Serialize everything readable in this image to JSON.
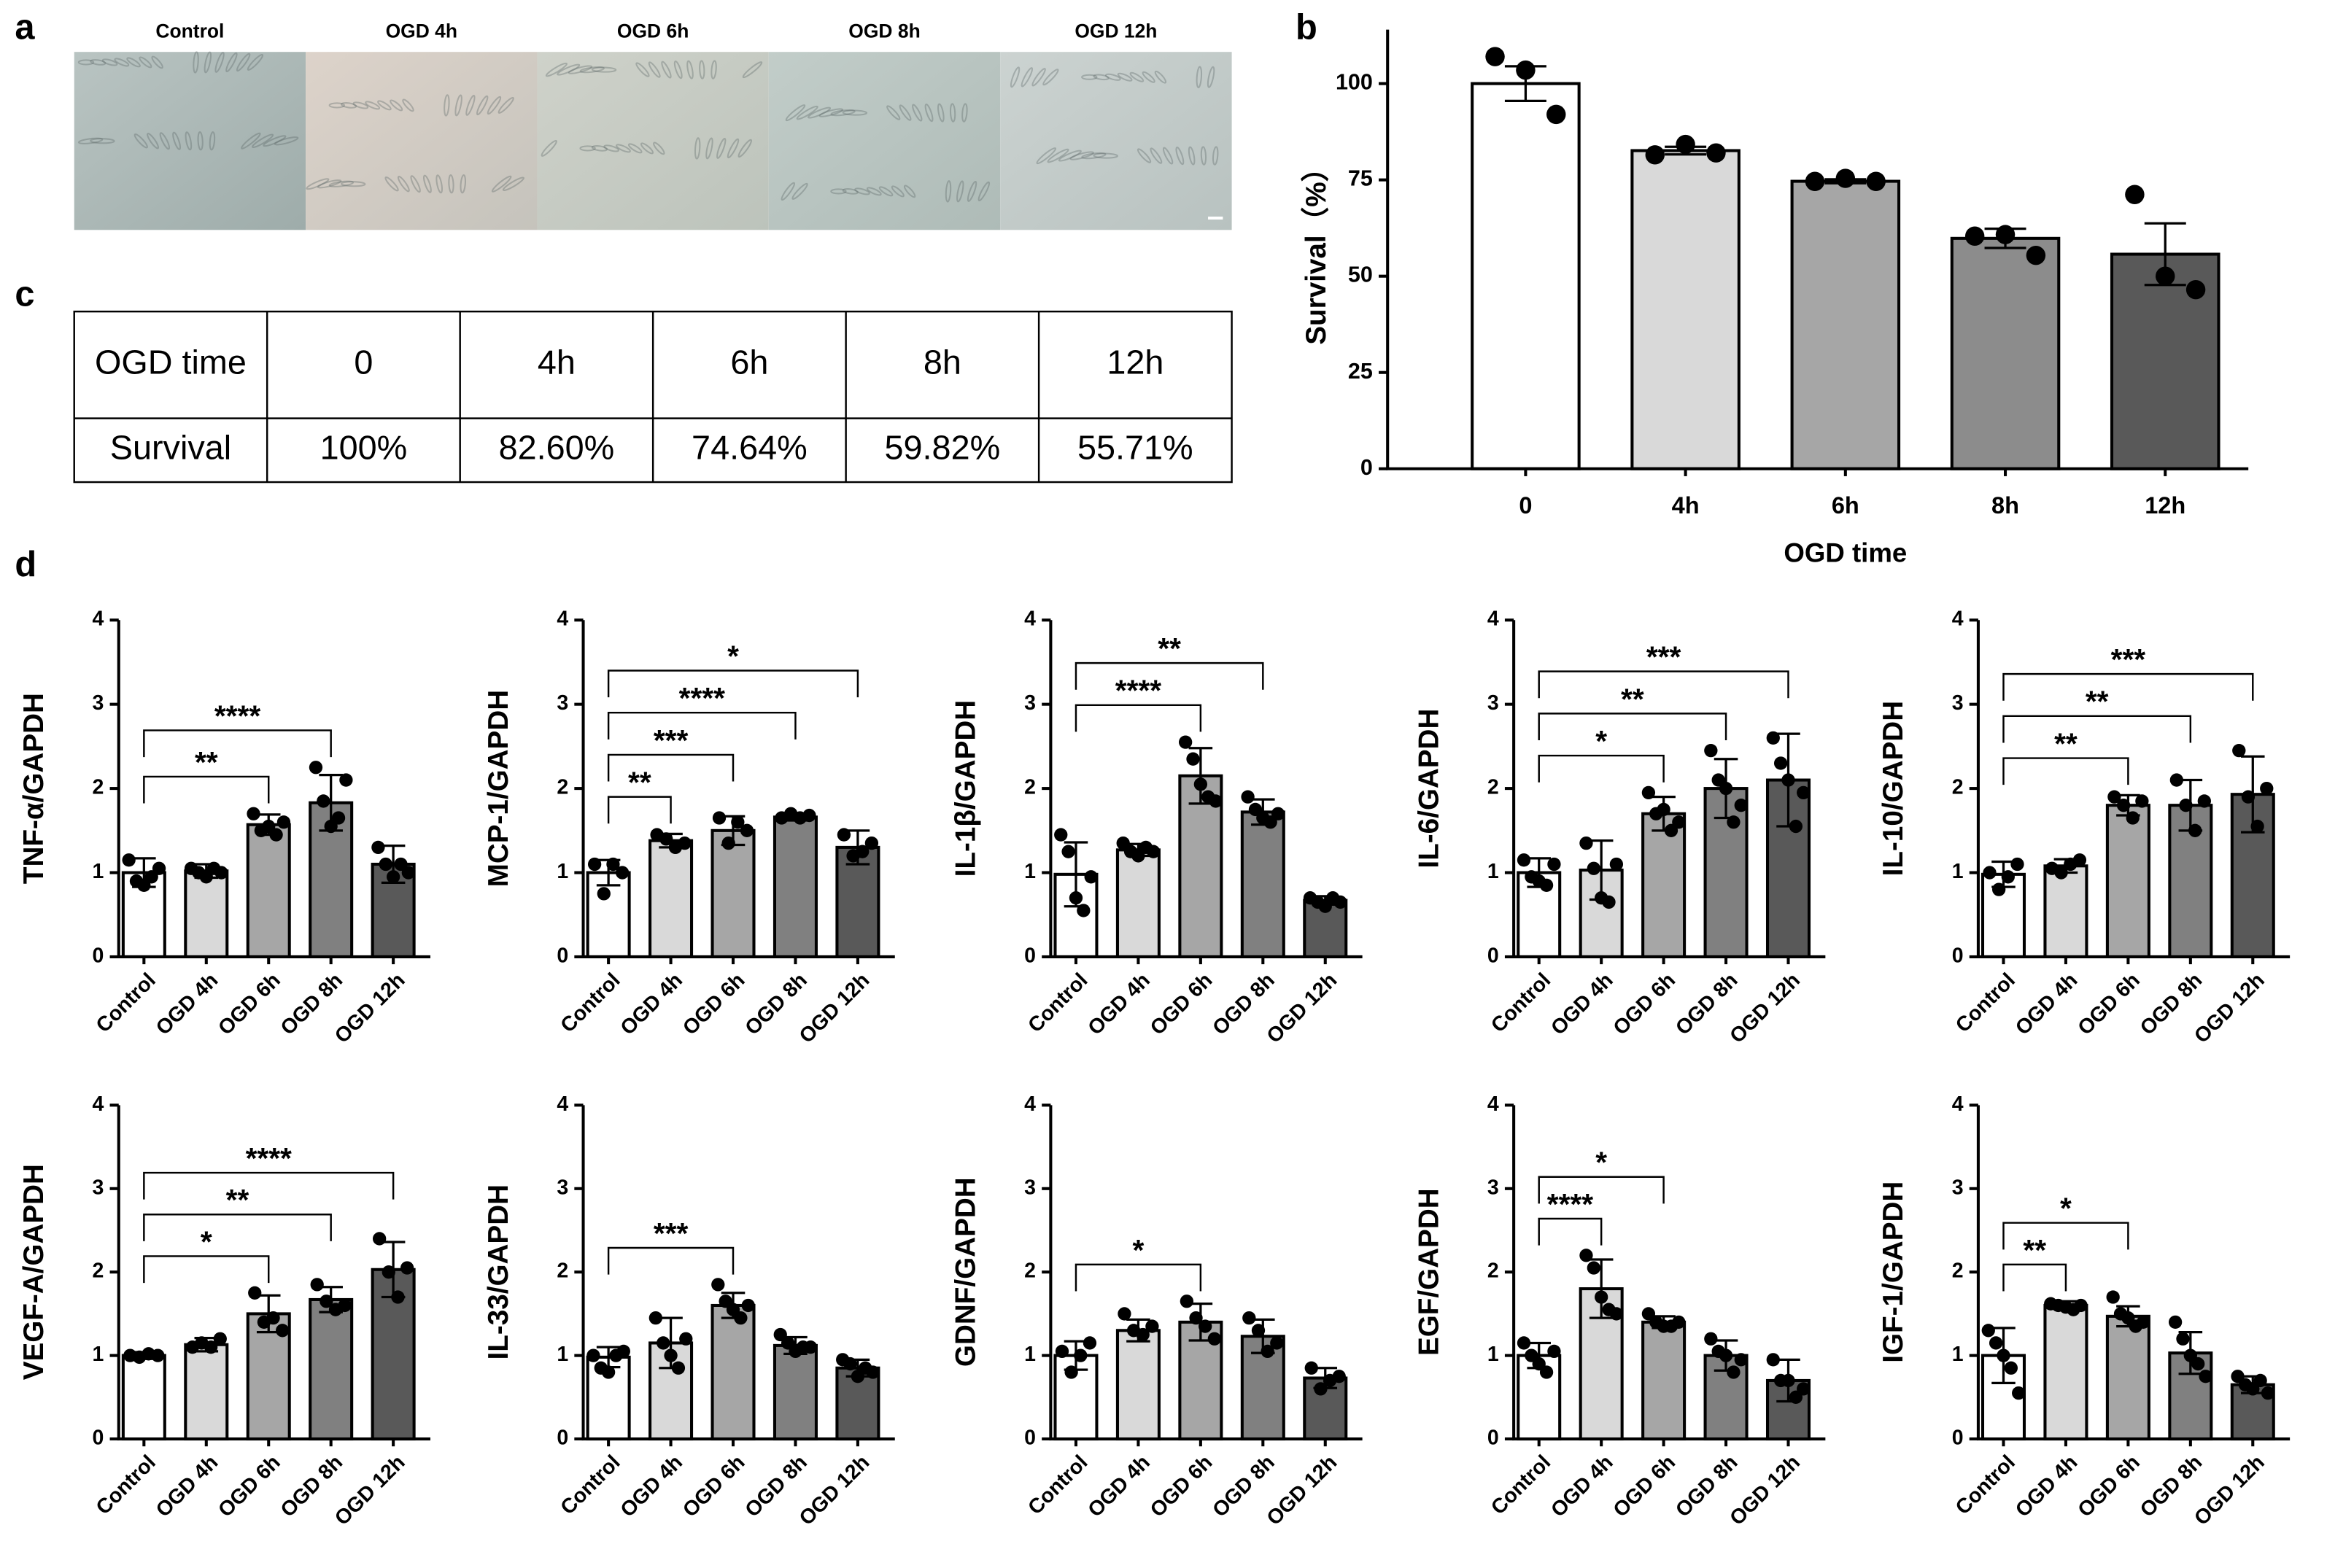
{
  "panel_labels": [
    "a",
    "b",
    "c",
    "d"
  ],
  "images": {
    "labels": [
      "Control",
      "OGD 4h",
      "OGD 6h",
      "OGD 8h",
      "OGD 12h"
    ]
  },
  "table": {
    "header": [
      "OGD time",
      "0",
      "4h",
      "6h",
      "8h",
      "12h"
    ],
    "rows": [
      [
        "Survival",
        "100%",
        "82.60%",
        "74.64%",
        "59.82%",
        "55.71%"
      ]
    ]
  },
  "chart_data": [
    {
      "type": "bar",
      "ylabel": "Survival（%）",
      "xlabel": "OGD time",
      "categories": [
        "0",
        "4h",
        "6h",
        "8h",
        "12h"
      ],
      "values": [
        100,
        82.6,
        74.64,
        59.82,
        55.71
      ],
      "errors": [
        4.5,
        1,
        0.5,
        2.5,
        8
      ],
      "points": [
        [
          107,
          103.5,
          92
        ],
        [
          81.5,
          84.2,
          82
        ],
        [
          74.6,
          75.4,
          74.6
        ],
        [
          60.4,
          60.8,
          55.4
        ],
        [
          71.2,
          50,
          46.5
        ]
      ],
      "colors": [
        "#ffffff",
        "#d9d9d9",
        "#a6a6a6",
        "#8c8c8c",
        "#595959"
      ],
      "ylim": [
        0,
        114
      ],
      "yticks": [
        0,
        25,
        50,
        75,
        100
      ],
      "annotations": []
    },
    {
      "type": "bar",
      "ylabel": "TNF-α/GAPDH",
      "categories": [
        "Control",
        "OGD 4h",
        "OGD 6h",
        "OGD 8h",
        "OGD 12h"
      ],
      "values": [
        1.0,
        1.02,
        1.57,
        1.83,
        1.1
      ],
      "errors": [
        0.17,
        0.08,
        0.12,
        0.33,
        0.22
      ],
      "points": [
        [
          1.15,
          0.9,
          0.85,
          0.95,
          1.05
        ],
        [
          1.05,
          1.0,
          0.95,
          1.05,
          1.0
        ],
        [
          1.7,
          1.5,
          1.55,
          1.45,
          1.6
        ],
        [
          2.25,
          1.85,
          1.55,
          1.65,
          2.1
        ],
        [
          1.3,
          1.1,
          0.95,
          1.1,
          1.0
        ]
      ],
      "colors": [
        "#ffffff",
        "#d9d9d9",
        "#a6a6a6",
        "#808080",
        "#595959"
      ],
      "ylim": [
        0,
        4
      ],
      "yticks": [
        0,
        1,
        2,
        3,
        4
      ],
      "annotations": [
        {
          "label": "**",
          "from": "Control",
          "to": "OGD 6h"
        },
        {
          "label": "****",
          "from": "Control",
          "to": "OGD 8h"
        }
      ]
    },
    {
      "type": "bar",
      "ylabel": "MCP-1/GAPDH",
      "categories": [
        "Control",
        "OGD 4h",
        "OGD 6h",
        "OGD 8h",
        "OGD 12h"
      ],
      "values": [
        1.0,
        1.38,
        1.5,
        1.66,
        1.3
      ],
      "errors": [
        0.15,
        0.08,
        0.17,
        0.04,
        0.2
      ],
      "points": [
        [
          1.1,
          0.75,
          1.1,
          1.0
        ],
        [
          1.45,
          1.4,
          1.3,
          1.35
        ],
        [
          1.65,
          1.35,
          1.6,
          1.5
        ],
        [
          1.65,
          1.7,
          1.65,
          1.68
        ],
        [
          1.45,
          1.2,
          1.25,
          1.35
        ]
      ],
      "colors": [
        "#ffffff",
        "#d9d9d9",
        "#a6a6a6",
        "#808080",
        "#595959"
      ],
      "ylim": [
        0,
        4
      ],
      "yticks": [
        0,
        1,
        2,
        3,
        4
      ],
      "annotations": [
        {
          "label": "**",
          "from": "Control",
          "to": "OGD 4h"
        },
        {
          "label": "***",
          "from": "Control",
          "to": "OGD 6h"
        },
        {
          "label": "****",
          "from": "Control",
          "to": "OGD 8h"
        },
        {
          "label": "*",
          "from": "Control",
          "to": "OGD 12h"
        }
      ]
    },
    {
      "type": "bar",
      "ylabel": "IL-1β/GAPDH",
      "categories": [
        "Control",
        "OGD 4h",
        "OGD 6h",
        "OGD 8h",
        "OGD 12h"
      ],
      "values": [
        0.98,
        1.27,
        2.15,
        1.72,
        0.67
      ],
      "errors": [
        0.38,
        0.07,
        0.33,
        0.15,
        0.05
      ],
      "points": [
        [
          1.45,
          1.25,
          0.7,
          0.55,
          0.95
        ],
        [
          1.35,
          1.25,
          1.2,
          1.3,
          1.25
        ],
        [
          2.55,
          2.35,
          2.05,
          1.9,
          1.85
        ],
        [
          1.9,
          1.75,
          1.65,
          1.6,
          1.7
        ],
        [
          0.7,
          0.65,
          0.6,
          0.7,
          0.65
        ]
      ],
      "colors": [
        "#ffffff",
        "#d9d9d9",
        "#a6a6a6",
        "#808080",
        "#595959"
      ],
      "ylim": [
        0,
        4
      ],
      "yticks": [
        0,
        1,
        2,
        3,
        4
      ],
      "annotations": [
        {
          "label": "****",
          "from": "Control",
          "to": "OGD 6h"
        },
        {
          "label": "**",
          "from": "Control",
          "to": "OGD 8h"
        }
      ]
    },
    {
      "type": "bar",
      "ylabel": "IL-6/GAPDH",
      "categories": [
        "Control",
        "OGD 4h",
        "OGD 6h",
        "OGD 8h",
        "OGD 12h"
      ],
      "values": [
        1.0,
        1.03,
        1.7,
        2.0,
        2.1
      ],
      "errors": [
        0.17,
        0.35,
        0.2,
        0.35,
        0.55
      ],
      "points": [
        [
          1.15,
          0.95,
          0.9,
          0.85,
          1.1
        ],
        [
          1.35,
          1.05,
          0.7,
          0.65,
          1.1
        ],
        [
          1.95,
          1.7,
          1.75,
          1.5,
          1.6
        ],
        [
          2.45,
          2.1,
          2.0,
          1.6,
          1.8
        ],
        [
          2.6,
          2.3,
          2.1,
          1.55,
          1.95
        ]
      ],
      "colors": [
        "#ffffff",
        "#d9d9d9",
        "#a6a6a6",
        "#808080",
        "#595959"
      ],
      "ylim": [
        0,
        4
      ],
      "yticks": [
        0,
        1,
        2,
        3,
        4
      ],
      "annotations": [
        {
          "label": "*",
          "from": "Control",
          "to": "OGD 6h"
        },
        {
          "label": "**",
          "from": "Control",
          "to": "OGD 8h"
        },
        {
          "label": "***",
          "from": "Control",
          "to": "OGD 12h"
        }
      ]
    },
    {
      "type": "bar",
      "ylabel": "IL-10/GAPDH",
      "categories": [
        "Control",
        "OGD 4h",
        "OGD 6h",
        "OGD 8h",
        "OGD 12h"
      ],
      "values": [
        0.98,
        1.08,
        1.8,
        1.8,
        1.93
      ],
      "errors": [
        0.15,
        0.08,
        0.12,
        0.3,
        0.45
      ],
      "points": [
        [
          1.0,
          0.8,
          0.95,
          1.1
        ],
        [
          1.05,
          1.0,
          1.1,
          1.15
        ],
        [
          1.9,
          1.8,
          1.65,
          1.85
        ],
        [
          2.1,
          1.8,
          1.5,
          1.85
        ],
        [
          2.45,
          1.9,
          1.55,
          2.0
        ]
      ],
      "colors": [
        "#ffffff",
        "#d9d9d9",
        "#a6a6a6",
        "#808080",
        "#595959"
      ],
      "ylim": [
        0,
        4
      ],
      "yticks": [
        0,
        1,
        2,
        3,
        4
      ],
      "annotations": [
        {
          "label": "**",
          "from": "Control",
          "to": "OGD 6h"
        },
        {
          "label": "**",
          "from": "Control",
          "to": "OGD 8h"
        },
        {
          "label": "***",
          "from": "Control",
          "to": "OGD 12h"
        }
      ]
    },
    {
      "type": "bar",
      "ylabel": "VEGF-A/GAPDH",
      "categories": [
        "Control",
        "OGD 4h",
        "OGD 6h",
        "OGD 8h",
        "OGD 12h"
      ],
      "values": [
        1.0,
        1.13,
        1.5,
        1.67,
        2.03
      ],
      "errors": [
        0.04,
        0.08,
        0.22,
        0.15,
        0.33
      ],
      "points": [
        [
          1.0,
          0.98,
          1.02,
          1.0
        ],
        [
          1.1,
          1.15,
          1.1,
          1.2
        ],
        [
          1.75,
          1.4,
          1.45,
          1.3
        ],
        [
          1.85,
          1.65,
          1.55,
          1.6
        ],
        [
          2.4,
          2.0,
          1.7,
          2.05
        ]
      ],
      "colors": [
        "#ffffff",
        "#d9d9d9",
        "#a6a6a6",
        "#808080",
        "#595959"
      ],
      "ylim": [
        0,
        4
      ],
      "yticks": [
        0,
        1,
        2,
        3,
        4
      ],
      "annotations": [
        {
          "label": "*",
          "from": "Control",
          "to": "OGD 6h"
        },
        {
          "label": "**",
          "from": "Control",
          "to": "OGD 8h"
        },
        {
          "label": "****",
          "from": "Control",
          "to": "OGD 12h"
        }
      ]
    },
    {
      "type": "bar",
      "ylabel": "IL-33/GAPDH",
      "categories": [
        "Control",
        "OGD 4h",
        "OGD 6h",
        "OGD 8h",
        "OGD 12h"
      ],
      "values": [
        0.98,
        1.15,
        1.6,
        1.12,
        0.85
      ],
      "errors": [
        0.12,
        0.3,
        0.15,
        0.1,
        0.1
      ],
      "points": [
        [
          1.0,
          0.85,
          0.8,
          1.0,
          1.05
        ],
        [
          1.45,
          1.15,
          1.0,
          0.85,
          1.2
        ],
        [
          1.85,
          1.65,
          1.55,
          1.45,
          1.6
        ],
        [
          1.25,
          1.15,
          1.05,
          1.1,
          1.1
        ],
        [
          0.95,
          0.9,
          0.75,
          0.85,
          0.8
        ]
      ],
      "colors": [
        "#ffffff",
        "#d9d9d9",
        "#a6a6a6",
        "#808080",
        "#595959"
      ],
      "ylim": [
        0,
        4
      ],
      "yticks": [
        0,
        1,
        2,
        3,
        4
      ],
      "annotations": [
        {
          "label": "***",
          "from": "Control",
          "to": "OGD 6h"
        }
      ]
    },
    {
      "type": "bar",
      "ylabel": "GDNF/GAPDH",
      "categories": [
        "Control",
        "OGD 4h",
        "OGD 6h",
        "OGD 8h",
        "OGD 12h"
      ],
      "values": [
        1.0,
        1.3,
        1.4,
        1.23,
        0.73
      ],
      "errors": [
        0.17,
        0.13,
        0.22,
        0.2,
        0.12
      ],
      "points": [
        [
          1.05,
          0.8,
          1.0,
          1.15
        ],
        [
          1.5,
          1.3,
          1.25,
          1.35
        ],
        [
          1.65,
          1.45,
          1.35,
          1.2
        ],
        [
          1.45,
          1.3,
          1.05,
          1.15
        ],
        [
          0.85,
          0.6,
          0.7,
          0.75
        ]
      ],
      "colors": [
        "#ffffff",
        "#d9d9d9",
        "#a6a6a6",
        "#808080",
        "#595959"
      ],
      "ylim": [
        0,
        4
      ],
      "yticks": [
        0,
        1,
        2,
        3,
        4
      ],
      "annotations": [
        {
          "label": "*",
          "from": "Control",
          "to": "OGD 6h"
        }
      ]
    },
    {
      "type": "bar",
      "ylabel": "EGF/GAPDH",
      "categories": [
        "Control",
        "OGD 4h",
        "OGD 6h",
        "OGD 8h",
        "OGD 12h"
      ],
      "values": [
        1.0,
        1.8,
        1.4,
        1.0,
        0.7
      ],
      "errors": [
        0.15,
        0.35,
        0.07,
        0.18,
        0.25
      ],
      "points": [
        [
          1.15,
          1.0,
          0.9,
          0.8,
          1.05
        ],
        [
          2.2,
          2.05,
          1.7,
          1.55,
          1.5
        ],
        [
          1.5,
          1.4,
          1.35,
          1.35,
          1.4
        ],
        [
          1.2,
          1.05,
          1.0,
          0.8,
          0.95
        ],
        [
          0.95,
          0.7,
          0.7,
          0.5,
          0.6
        ]
      ],
      "colors": [
        "#ffffff",
        "#d9d9d9",
        "#a6a6a6",
        "#808080",
        "#595959"
      ],
      "ylim": [
        0,
        4
      ],
      "yticks": [
        0,
        1,
        2,
        3,
        4
      ],
      "annotations": [
        {
          "label": "****",
          "from": "Control",
          "to": "OGD 4h"
        },
        {
          "label": "*",
          "from": "Control",
          "to": "OGD 6h"
        }
      ]
    },
    {
      "type": "bar",
      "ylabel": "IGF-1/GAPDH",
      "categories": [
        "Control",
        "OGD 4h",
        "OGD 6h",
        "OGD 8h",
        "OGD 12h"
      ],
      "values": [
        1.0,
        1.6,
        1.47,
        1.03,
        0.65
      ],
      "errors": [
        0.33,
        0.05,
        0.12,
        0.25,
        0.1
      ],
      "points": [
        [
          1.3,
          1.15,
          1.0,
          0.85,
          0.55
        ],
        [
          1.62,
          1.6,
          1.58,
          1.55,
          1.6
        ],
        [
          1.7,
          1.5,
          1.45,
          1.35,
          1.4
        ],
        [
          1.4,
          1.2,
          1.0,
          0.9,
          0.75
        ],
        [
          0.75,
          0.65,
          0.6,
          0.7,
          0.55
        ]
      ],
      "colors": [
        "#ffffff",
        "#d9d9d9",
        "#a6a6a6",
        "#808080",
        "#595959"
      ],
      "ylim": [
        0,
        4
      ],
      "yticks": [
        0,
        1,
        2,
        3,
        4
      ],
      "annotations": [
        {
          "label": "**",
          "from": "Control",
          "to": "OGD 4h"
        },
        {
          "label": "*",
          "from": "Control",
          "to": "OGD 6h"
        }
      ]
    }
  ]
}
